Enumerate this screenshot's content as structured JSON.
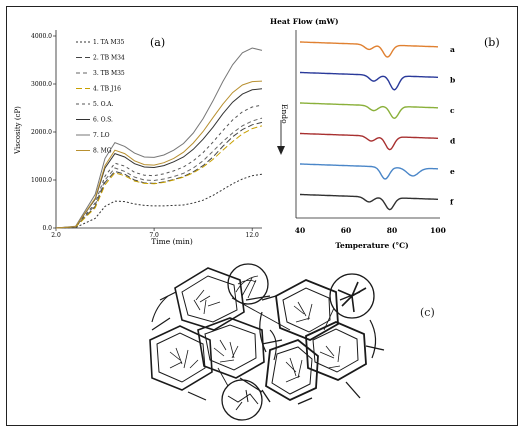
{
  "panel_a": {
    "label": "(a)",
    "ylabel": "Viscosity (cP)",
    "xlabel": "Time (min)",
    "chart_data": {
      "type": "line",
      "xlabel": "Time (min)",
      "ylabel": "Viscosity (cP)",
      "xlim": [
        2.0,
        12.5
      ],
      "ylim": [
        0,
        4000
      ],
      "y_ticks": [
        "0.0",
        "1000.0",
        "2000.0",
        "3000.0",
        "4000.0"
      ],
      "x_ticks": [
        "2.0",
        "7.0",
        "12.0"
      ],
      "x": [
        2.0,
        3.0,
        4.0,
        4.5,
        5.0,
        5.5,
        6.0,
        6.5,
        7.0,
        7.5,
        8.0,
        8.5,
        9.0,
        9.5,
        10.0,
        10.5,
        11.0,
        11.5,
        12.0,
        12.5
      ],
      "series": [
        {
          "name": "1. TA M35",
          "color": "#333333",
          "dash": "2,2",
          "values": [
            0,
            10,
            200,
            450,
            560,
            550,
            500,
            470,
            460,
            460,
            470,
            480,
            520,
            580,
            680,
            800,
            920,
            1020,
            1090,
            1120
          ]
        },
        {
          "name": "2. TB M34",
          "color": "#444444",
          "dash": "6,3",
          "values": [
            0,
            20,
            450,
            950,
            1180,
            1120,
            1000,
            940,
            930,
            960,
            1010,
            1070,
            1170,
            1300,
            1480,
            1700,
            1900,
            2050,
            2150,
            2200
          ]
        },
        {
          "name": "3. TB M35",
          "color": "#666666",
          "dash": "4,3",
          "values": [
            0,
            20,
            480,
            1000,
            1250,
            1180,
            1060,
            1000,
            990,
            1020,
            1070,
            1140,
            1250,
            1400,
            1600,
            1800,
            1980,
            2130,
            2230,
            2290
          ]
        },
        {
          "name": "4. TB J16",
          "color": "#c8a000",
          "dash": "6,3",
          "values": [
            0,
            20,
            420,
            900,
            1150,
            1090,
            980,
            930,
            920,
            950,
            1000,
            1060,
            1150,
            1270,
            1430,
            1620,
            1800,
            1960,
            2070,
            2130
          ]
        },
        {
          "name": "5. O.A.",
          "color": "#555555",
          "dash": "3,3",
          "values": [
            0,
            25,
            520,
            1080,
            1350,
            1290,
            1160,
            1100,
            1090,
            1130,
            1190,
            1270,
            1400,
            1570,
            1790,
            2030,
            2250,
            2420,
            2520,
            2560
          ]
        },
        {
          "name": "6. O.S.",
          "color": "#333333",
          "dash": "",
          "values": [
            0,
            30,
            600,
            1250,
            1550,
            1480,
            1340,
            1270,
            1260,
            1300,
            1380,
            1480,
            1640,
            1850,
            2100,
            2380,
            2620,
            2790,
            2880,
            2900
          ]
        },
        {
          "name": "7. LO",
          "color": "#777777",
          "dash": "",
          "values": [
            0,
            35,
            700,
            1450,
            1780,
            1700,
            1560,
            1480,
            1470,
            1520,
            1620,
            1760,
            1980,
            2280,
            2650,
            3050,
            3400,
            3650,
            3750,
            3700
          ]
        },
        {
          "name": "8. MG",
          "color": "#b89030",
          "dash": "",
          "values": [
            0,
            30,
            620,
            1300,
            1620,
            1550,
            1400,
            1320,
            1310,
            1360,
            1450,
            1580,
            1770,
            2010,
            2300,
            2580,
            2820,
            2980,
            3050,
            3060
          ]
        }
      ]
    }
  },
  "panel_b": {
    "label": "(b)",
    "title": "Heat Flow (mW)",
    "endo_label": "Endo",
    "xlabel": "Temperature (°C)",
    "chart_data": {
      "type": "line",
      "xlabel": "Temperature (°C)",
      "ylabel": "Heat Flow (mW)",
      "xlim": [
        40,
        100
      ],
      "x_ticks": [
        "40",
        "60",
        "80",
        "100"
      ],
      "curves": [
        {
          "name": "a",
          "color": "#e08030",
          "offset": 0,
          "dips": [
            [
              70,
              5
            ],
            [
              78,
              12
            ]
          ]
        },
        {
          "name": "b",
          "color": "#2a3a9a",
          "offset": 1,
          "dips": [
            [
              72,
              6
            ],
            [
              81,
              14
            ]
          ]
        },
        {
          "name": "c",
          "color": "#8ab03a",
          "offset": 2,
          "dips": [
            [
              72,
              5
            ],
            [
              81,
              12
            ]
          ]
        },
        {
          "name": "d",
          "color": "#a83030",
          "offset": 3,
          "dips": [
            [
              71,
              5
            ],
            [
              79,
              13
            ]
          ]
        },
        {
          "name": "e",
          "color": "#4a86c8",
          "offset": 4,
          "dips": [
            [
              77,
              12
            ],
            [
              89,
              8
            ]
          ]
        },
        {
          "name": "f",
          "color": "#303030",
          "offset": 5,
          "dips": [
            [
              70,
              5
            ],
            [
              79,
              12
            ]
          ]
        }
      ]
    }
  },
  "panel_c": {
    "label": "(c)"
  }
}
